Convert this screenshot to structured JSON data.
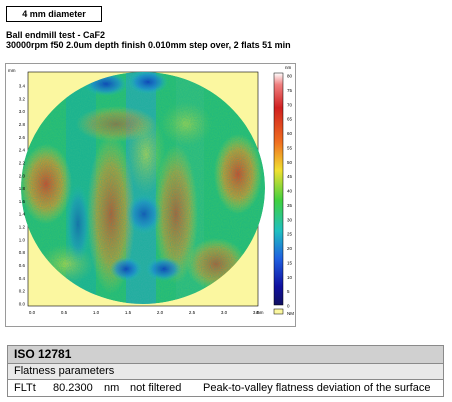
{
  "header": {
    "diameter_label": "4 mm diameter",
    "title": "Ball endmill test - CaF2",
    "subtitle": "30000rpm f50 2.0um depth finish 0.010mm step over, 2 flats 51 min"
  },
  "plot": {
    "y_unit": "mm",
    "x_unit": "mm",
    "x_ticks": [
      "0.0",
      "0.5",
      "1.0",
      "1.5",
      "2.0",
      "2.5",
      "3.0",
      "3.5"
    ],
    "y_ticks": [
      "0.0",
      "0.2",
      "0.4",
      "0.6",
      "0.8",
      "1.0",
      "1.2",
      "1.4",
      "1.6",
      "1.8",
      "2.0",
      "2.2",
      "2.4",
      "2.6",
      "2.8",
      "3.0",
      "3.2",
      "3.4"
    ],
    "colorbar_unit": "nm",
    "colorbar_ticks": [
      "80",
      "75",
      "70",
      "65",
      "60",
      "55",
      "50",
      "45",
      "40",
      "35",
      "30",
      "25",
      "20",
      "15",
      "10",
      "5",
      "0"
    ],
    "nm_label": "NM",
    "colors": {
      "background": "#fbf7a0",
      "low": "#1030c0",
      "mid": "#20c060",
      "high": "#e04020"
    }
  },
  "iso": {
    "title": "ISO 12781",
    "section": "Flatness parameters",
    "rows": [
      {
        "name": "FLTt",
        "value": "80.2300",
        "unit": "nm",
        "filter": "not filtered",
        "description": "Peak-to-valley flatness deviation of the surface"
      }
    ]
  }
}
